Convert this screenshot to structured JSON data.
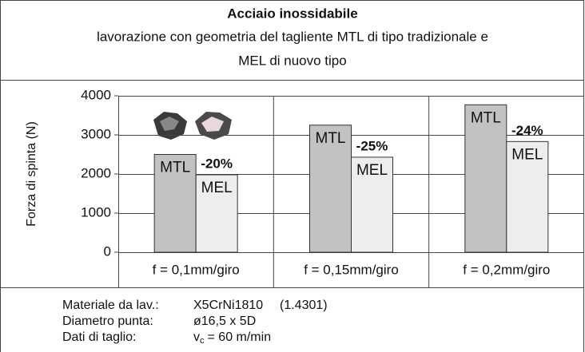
{
  "title": "Acciaio inossidabile",
  "subtitle_lines": [
    "lavorazione con geometria del tagliente MTL di tipo tradizionale e",
    "MEL di nuovo tipo"
  ],
  "chart_data": {
    "type": "bar",
    "y_label": "Forza di spinta (N)",
    "categories": [
      "f = 0,1mm/giro",
      "f = 0,15mm/giro",
      "f = 0,2mm/giro"
    ],
    "series": [
      {
        "name": "MTL",
        "color": "#c2c2c2",
        "values": [
          2500,
          3250,
          3770
        ]
      },
      {
        "name": "MEL",
        "color": "#ededed",
        "values": [
          1980,
          2430,
          2830
        ]
      }
    ],
    "annotations": [
      "-20%",
      "-25%",
      "-24%"
    ],
    "ylim": [
      0,
      4000
    ],
    "yticks": [
      0,
      1000,
      2000,
      3000,
      4000
    ],
    "grid": true
  },
  "specs": [
    {
      "label": "Materiale da lav.:",
      "value": "X5CrNi1810",
      "extra": "(1.4301)"
    },
    {
      "label": "Diametro punta:",
      "value": "ø16,5 x 5D"
    },
    {
      "label": "Dati di taglio:",
      "symbol": "v",
      "subscript": "c",
      "value": "= 60 m/min"
    }
  ]
}
